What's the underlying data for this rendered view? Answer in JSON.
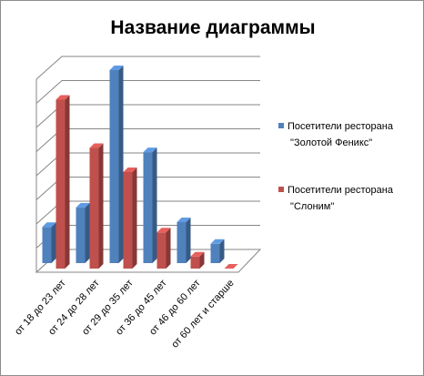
{
  "chart_data": {
    "type": "bar",
    "title": "Название диаграммы",
    "categories": [
      "от 18 до 23 лет",
      "от 24 до 28 лет",
      "от 29 до 35 лет",
      "от 36 до 45 лет",
      "от 46 до 60 лет",
      "от 60 лет и старше"
    ],
    "series": [
      {
        "name": "Посетители ресторана \"Золотой Феникс\"",
        "legend_lines": [
          "Посетители ресторана",
          "\"Золотой Феникс\""
        ],
        "color": "#4F81BD",
        "values": [
          15,
          23,
          80,
          46,
          17,
          8
        ]
      },
      {
        "name": "Посетители ресторана \"Слоним\"",
        "legend_lines": [
          "Посетители ресторана",
          "\"Слоним\""
        ],
        "color": "#C0504D",
        "values": [
          70,
          50,
          40,
          15,
          5,
          0
        ]
      }
    ],
    "ylim": [
      0,
      80
    ],
    "grid": true,
    "legend_position": "right",
    "style": "3d-column"
  }
}
